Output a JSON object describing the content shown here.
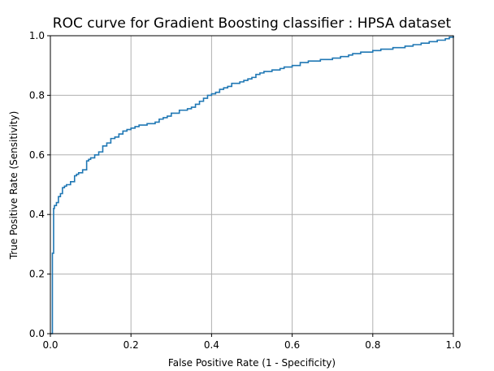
{
  "chart_data": {
    "type": "line",
    "title": "ROC curve for Gradient Boosting classifier : HPSA dataset",
    "xlabel": "False Positive Rate (1 - Specificity)",
    "ylabel": "True Positive Rate (Sensitivity)",
    "xlim": [
      0.0,
      1.0
    ],
    "ylim": [
      0.0,
      1.0
    ],
    "xticks": [
      "0.0",
      "0.2",
      "0.4",
      "0.6",
      "0.8",
      "1.0"
    ],
    "yticks": [
      "0.0",
      "0.2",
      "0.4",
      "0.6",
      "0.8",
      "1.0"
    ],
    "grid": true,
    "line_color": "#1f77b4",
    "grid_color": "#b0b0b0",
    "series": [
      {
        "x": [
          0.0,
          0.005,
          0.008,
          0.01,
          0.015,
          0.02,
          0.025,
          0.03,
          0.035,
          0.04,
          0.05,
          0.06,
          0.065,
          0.07,
          0.08,
          0.09,
          0.095,
          0.1,
          0.11,
          0.12,
          0.13,
          0.14,
          0.15,
          0.16,
          0.17,
          0.18,
          0.19,
          0.2,
          0.21,
          0.22,
          0.24,
          0.26,
          0.27,
          0.28,
          0.29,
          0.3,
          0.32,
          0.34,
          0.35,
          0.36,
          0.37,
          0.38,
          0.39,
          0.4,
          0.41,
          0.42,
          0.43,
          0.44,
          0.45,
          0.47,
          0.48,
          0.49,
          0.5,
          0.51,
          0.52,
          0.53,
          0.55,
          0.57,
          0.58,
          0.6,
          0.62,
          0.64,
          0.67,
          0.7,
          0.72,
          0.74,
          0.75,
          0.77,
          0.8,
          0.82,
          0.85,
          0.88,
          0.9,
          0.92,
          0.94,
          0.96,
          0.98,
          0.99,
          1.0
        ],
        "y": [
          0.0,
          0.27,
          0.42,
          0.43,
          0.44,
          0.46,
          0.47,
          0.49,
          0.495,
          0.5,
          0.51,
          0.53,
          0.535,
          0.54,
          0.55,
          0.58,
          0.585,
          0.59,
          0.6,
          0.61,
          0.63,
          0.64,
          0.655,
          0.66,
          0.67,
          0.68,
          0.685,
          0.69,
          0.695,
          0.7,
          0.705,
          0.71,
          0.72,
          0.725,
          0.73,
          0.74,
          0.75,
          0.755,
          0.76,
          0.77,
          0.78,
          0.79,
          0.8,
          0.805,
          0.81,
          0.82,
          0.825,
          0.83,
          0.84,
          0.845,
          0.85,
          0.855,
          0.86,
          0.87,
          0.875,
          0.88,
          0.885,
          0.89,
          0.895,
          0.9,
          0.91,
          0.915,
          0.92,
          0.925,
          0.93,
          0.935,
          0.94,
          0.945,
          0.95,
          0.955,
          0.96,
          0.965,
          0.97,
          0.975,
          0.98,
          0.985,
          0.99,
          0.995,
          1.0
        ]
      }
    ]
  }
}
